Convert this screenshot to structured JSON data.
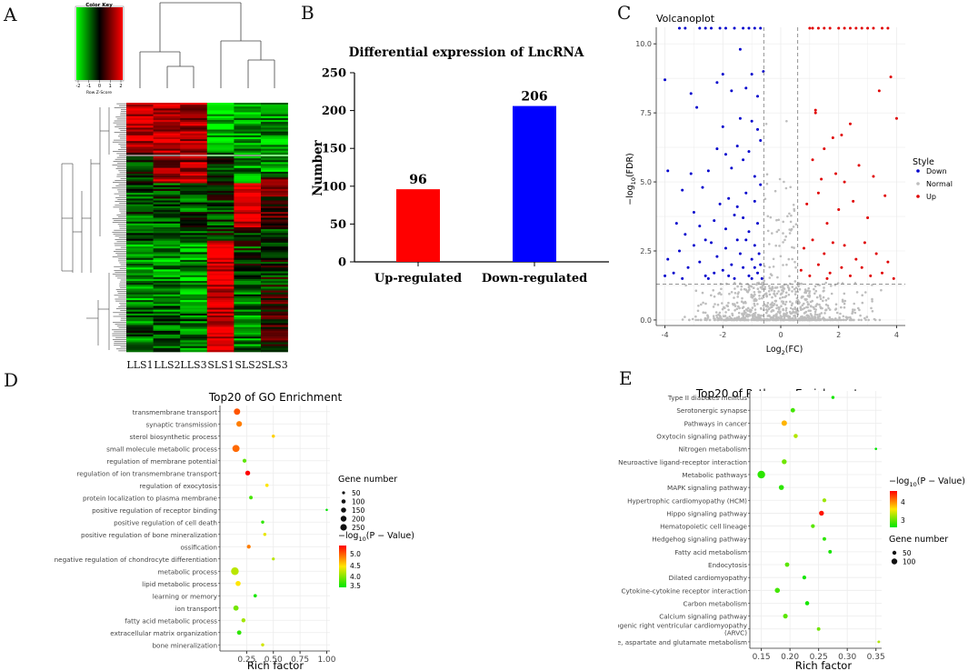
{
  "panels": {
    "A": "A",
    "B": "B",
    "C": "C",
    "D": "D",
    "E": "E"
  },
  "chart_data": [
    {
      "id": "A",
      "type": "heatmap",
      "title": "Color Key",
      "key_ticks": [
        "-2",
        "-1",
        "0",
        "1",
        "2"
      ],
      "key_label": "Row Z-Score",
      "columns": [
        "LLS1",
        "LLS2",
        "LLS3",
        "SLS1",
        "SLS2",
        "SLS3"
      ]
    },
    {
      "id": "B",
      "type": "bar",
      "title": "Differential expression of LncRNA",
      "ylabel": "Number",
      "ylim": [
        0,
        250
      ],
      "yticks": [
        "0",
        "50",
        "100",
        "150",
        "200",
        "250"
      ],
      "categories": [
        "Up-regulated",
        "Down-regulated"
      ],
      "values": [
        96,
        206
      ],
      "value_labels": [
        "96",
        "206"
      ],
      "colors": [
        "#ff0000",
        "#0000ff"
      ]
    },
    {
      "id": "C",
      "type": "scatter",
      "title": "Volcanoplot",
      "xlabel": "Log",
      "xlabel_sub": "2",
      "xlabel_tail": "(FC)",
      "ylabel": "−log",
      "ylabel_sub": "10",
      "ylabel_tail": "(FDR)",
      "xlim": [
        -4.3,
        4.3
      ],
      "ylim": [
        -0.2,
        10.6
      ],
      "xticks": [
        "-4",
        "-2",
        "0",
        "2",
        "4"
      ],
      "yticks": [
        "0.0",
        "2.5",
        "5.0",
        "7.5",
        "10.0"
      ],
      "legend_title": "Style",
      "legend": [
        "Down",
        "Normal",
        "Up"
      ],
      "colors": {
        "Down": "#0000cc",
        "Normal": "#bdbdbd",
        "Up": "#e00000"
      },
      "thresholds": {
        "fc": 0.585,
        "fdr": 1.3
      },
      "points_down": [
        [
          -4,
          8.7
        ],
        [
          -3.1,
          8.2
        ],
        [
          -2.9,
          7.7
        ],
        [
          -2.2,
          8.6
        ],
        [
          -2.0,
          8.9
        ],
        [
          -1.7,
          8.3
        ],
        [
          -1.4,
          9.8
        ],
        [
          -1.2,
          8.4
        ],
        [
          -1.0,
          8.9
        ],
        [
          -0.8,
          8.1
        ],
        [
          -0.6,
          9.0
        ],
        [
          -3.9,
          5.4
        ],
        [
          -3.4,
          4.7
        ],
        [
          -3.1,
          5.3
        ],
        [
          -2.7,
          4.8
        ],
        [
          -2.5,
          5.4
        ],
        [
          -2.2,
          6.2
        ],
        [
          -1.9,
          6.0
        ],
        [
          -1.7,
          5.5
        ],
        [
          -1.5,
          6.3
        ],
        [
          -1.3,
          5.8
        ],
        [
          -1.1,
          6.1
        ],
        [
          -0.9,
          5.2
        ],
        [
          -0.7,
          6.5
        ],
        [
          -2.0,
          7.0
        ],
        [
          -1.4,
          7.3
        ],
        [
          -1.0,
          7.2
        ],
        [
          -0.8,
          6.9
        ],
        [
          -3.6,
          3.5
        ],
        [
          -3.3,
          3.1
        ],
        [
          -3.0,
          3.9
        ],
        [
          -2.8,
          3.4
        ],
        [
          -2.6,
          2.9
        ],
        [
          -2.3,
          3.6
        ],
        [
          -2.1,
          4.2
        ],
        [
          -1.9,
          3.3
        ],
        [
          -1.8,
          4.4
        ],
        [
          -1.6,
          3.8
        ],
        [
          -1.5,
          4.1
        ],
        [
          -1.3,
          3.7
        ],
        [
          -1.2,
          4.6
        ],
        [
          -1.1,
          3.2
        ],
        [
          -0.9,
          4.3
        ],
        [
          -0.8,
          3.5
        ],
        [
          -0.7,
          4.9
        ],
        [
          -3.9,
          2.2
        ],
        [
          -3.7,
          1.7
        ],
        [
          -3.5,
          2.5
        ],
        [
          -3.2,
          1.9
        ],
        [
          -3.0,
          2.7
        ],
        [
          -2.8,
          2.1
        ],
        [
          -2.6,
          1.6
        ],
        [
          -2.4,
          2.8
        ],
        [
          -2.2,
          2.3
        ],
        [
          -2.0,
          1.8
        ],
        [
          -1.9,
          2.6
        ],
        [
          -1.7,
          2.0
        ],
        [
          -1.6,
          1.5
        ],
        [
          -1.4,
          2.4
        ],
        [
          -1.3,
          1.9
        ],
        [
          -1.2,
          2.9
        ],
        [
          -1.1,
          1.6
        ],
        [
          -1.0,
          2.2
        ],
        [
          -0.9,
          2.7
        ],
        [
          -0.8,
          1.7
        ],
        [
          -0.7,
          2.0
        ],
        [
          -0.65,
          1.5
        ],
        [
          -4.0,
          1.6
        ],
        [
          -2.5,
          1.5
        ],
        [
          -1.8,
          1.6
        ],
        [
          -1.5,
          2.9
        ],
        [
          -1.0,
          1.5
        ],
        [
          -0.9,
          1.9
        ],
        [
          -0.75,
          2.4
        ],
        [
          -2.3,
          1.7
        ],
        [
          -3.4,
          1.5
        ]
      ],
      "points_up": [
        [
          3.8,
          8.8
        ],
        [
          3.4,
          8.3
        ],
        [
          4.0,
          7.3
        ],
        [
          1.2,
          7.5
        ],
        [
          1.2,
          7.6
        ],
        [
          1.5,
          6.2
        ],
        [
          1.8,
          6.6
        ],
        [
          2.1,
          6.7
        ],
        [
          2.4,
          7.1
        ],
        [
          1.1,
          5.8
        ],
        [
          1.4,
          5.1
        ],
        [
          1.9,
          5.3
        ],
        [
          2.2,
          5.0
        ],
        [
          2.7,
          5.6
        ],
        [
          3.2,
          5.2
        ],
        [
          0.9,
          4.2
        ],
        [
          1.3,
          4.6
        ],
        [
          1.6,
          3.5
        ],
        [
          2.0,
          4.0
        ],
        [
          2.5,
          4.3
        ],
        [
          3.0,
          3.7
        ],
        [
          3.6,
          4.5
        ],
        [
          0.8,
          2.6
        ],
        [
          1.1,
          2.9
        ],
        [
          1.5,
          2.4
        ],
        [
          1.8,
          2.8
        ],
        [
          2.2,
          2.7
        ],
        [
          2.6,
          2.2
        ],
        [
          2.9,
          2.8
        ],
        [
          3.3,
          2.4
        ],
        [
          3.7,
          2.1
        ],
        [
          0.7,
          1.8
        ],
        [
          1.0,
          1.6
        ],
        [
          1.3,
          2.0
        ],
        [
          1.7,
          1.7
        ],
        [
          2.1,
          1.9
        ],
        [
          2.4,
          1.6
        ],
        [
          2.8,
          1.9
        ],
        [
          3.1,
          1.6
        ],
        [
          3.5,
          1.7
        ],
        [
          3.9,
          1.5
        ],
        [
          1.6,
          1.5
        ]
      ],
      "points_top_down": [
        -2.8,
        -2.4,
        -2.1,
        -1.9,
        -1.6,
        -1.3,
        -1.1,
        -0.9,
        -0.7,
        -3.5,
        -3.3,
        -2.6
      ],
      "points_top_up": [
        1.0,
        1.1,
        1.3,
        1.5,
        1.7,
        2.0,
        2.2,
        2.4,
        2.6,
        2.8,
        3.0,
        3.2,
        3.5,
        3.7
      ]
    },
    {
      "id": "D",
      "type": "scatter",
      "title": "Top20 of GO Enrichment",
      "xlabel": "Rich factor",
      "xlim": [
        0.0,
        1.03
      ],
      "xticks": [
        "0.25",
        "0.50",
        "0.75",
        "1.00"
      ],
      "xtick_values": [
        0.25,
        0.5,
        0.75,
        1.0
      ],
      "categories": [
        "transmembrane transport",
        "synaptic transmission",
        "sterol biosynthetic process",
        "small molecule metabolic process",
        "regulation of membrane potential",
        "regulation of ion transmembrane transport",
        "regulation of exocytosis",
        "protein localization to plasma membrane",
        "positive regulation of receptor binding",
        "positive regulation of cell death",
        "positive regulation of bone mineralization",
        "ossification",
        "negative regulation of chondrocyte differentiation",
        "metabolic process",
        "lipid metabolic process",
        "learning or memory",
        "ion transport",
        "fatty acid metabolic process",
        "extracellular matrix organization",
        "bone mineralization"
      ],
      "x": [
        0.16,
        0.18,
        0.5,
        0.15,
        0.23,
        0.26,
        0.44,
        0.29,
        1.0,
        0.4,
        0.42,
        0.27,
        0.5,
        0.14,
        0.17,
        0.33,
        0.15,
        0.22,
        0.18,
        0.4
      ],
      "size_gene": [
        160,
        120,
        20,
        220,
        40,
        80,
        25,
        30,
        5,
        20,
        20,
        40,
        15,
        260,
        90,
        25,
        100,
        45,
        60,
        20
      ],
      "neglog10p": [
        5.2,
        5.0,
        4.6,
        5.1,
        3.8,
        5.6,
        4.5,
        3.7,
        3.4,
        3.6,
        4.4,
        5.0,
        4.2,
        4.2,
        4.5,
        3.5,
        3.9,
        4.1,
        3.6,
        4.3
      ],
      "size_legend_title": "Gene number",
      "size_legend": [
        "50",
        "100",
        "150",
        "200",
        "250"
      ],
      "color_legend_title": "−log",
      "color_legend_sub": "10",
      "color_legend_tail": "(P − Value)",
      "color_ticks": [
        "5.0",
        "4.5",
        "4.0",
        "3.5"
      ]
    },
    {
      "id": "E",
      "type": "scatter",
      "title": "Top20 of Pathway Enrichment",
      "xlabel": "Rich factor",
      "xlim": [
        0.13,
        0.36
      ],
      "xticks": [
        "0.15",
        "0.20",
        "0.25",
        "0.30",
        "0.35"
      ],
      "xtick_values": [
        0.15,
        0.2,
        0.25,
        0.3,
        0.35
      ],
      "categories": [
        "Type II diabetes mellitus",
        "Serotonergic synapse",
        "Pathways in cancer",
        "Oxytocin signaling pathway",
        "Nitrogen metabolism",
        "Neuroactive ligand-receptor interaction",
        "Metabolic pathways",
        "MAPK signaling pathway",
        "Hypertrophic cardiomyopathy (HCM)",
        "Hippo signaling pathway",
        "Hematopoietic cell lineage",
        "Hedgehog signaling pathway",
        "Fatty acid metabolism",
        "Endocytosis",
        "Dilated cardiomyopathy",
        "Cytokine-cytokine receptor interaction",
        "Carbon metabolism",
        "Calcium signaling pathway",
        "Arrhythmogenic right ventricular cardiomyopathy (ARVC)",
        "Alanine, aspartate and glutamate metabolism"
      ],
      "category_lines": [
        [
          "Type II diabetes mellitus"
        ],
        [
          "Serotonergic synapse"
        ],
        [
          "Pathways in cancer"
        ],
        [
          "Oxytocin signaling pathway"
        ],
        [
          "Nitrogen metabolism"
        ],
        [
          "Neuroactive ligand-receptor interaction"
        ],
        [
          "Metabolic pathways"
        ],
        [
          "MAPK signaling pathway"
        ],
        [
          "Hypertrophic cardiomyopathy (HCM)"
        ],
        [
          "Hippo signaling pathway"
        ],
        [
          "Hematopoietic cell lineage"
        ],
        [
          "Hedgehog signaling pathway"
        ],
        [
          "Fatty acid metabolism"
        ],
        [
          "Endocytosis"
        ],
        [
          "Dilated cardiomyopathy"
        ],
        [
          "Cytokine-cytokine receptor interaction"
        ],
        [
          "Carbon metabolism"
        ],
        [
          "Calcium signaling pathway"
        ],
        [
          "Arrhythmogenic right ventricular cardiomyopathy",
          "(ARVC)"
        ],
        [
          "Alanine, aspartate and glutamate metabolism"
        ]
      ],
      "x": [
        0.275,
        0.205,
        0.19,
        0.21,
        0.35,
        0.19,
        0.15,
        0.185,
        0.26,
        0.255,
        0.24,
        0.26,
        0.27,
        0.195,
        0.225,
        0.178,
        0.23,
        0.192,
        0.25,
        0.355
      ],
      "size_gene": [
        10,
        30,
        55,
        25,
        3,
        40,
        130,
        45,
        20,
        40,
        20,
        15,
        15,
        30,
        20,
        45,
        25,
        35,
        15,
        5
      ],
      "neglog10p": [
        2.6,
        2.8,
        3.9,
        3.3,
        2.5,
        3.0,
        2.7,
        2.7,
        3.2,
        4.7,
        2.9,
        2.7,
        2.6,
        2.9,
        2.6,
        2.8,
        2.6,
        2.9,
        3.0,
        3.3
      ],
      "size_legend_title": "Gene number",
      "size_legend": [
        "50",
        "100"
      ],
      "color_legend_title": "−log",
      "color_legend_sub": "10",
      "color_legend_tail": "(P − Value)",
      "color_ticks": [
        "4",
        "3"
      ]
    }
  ]
}
